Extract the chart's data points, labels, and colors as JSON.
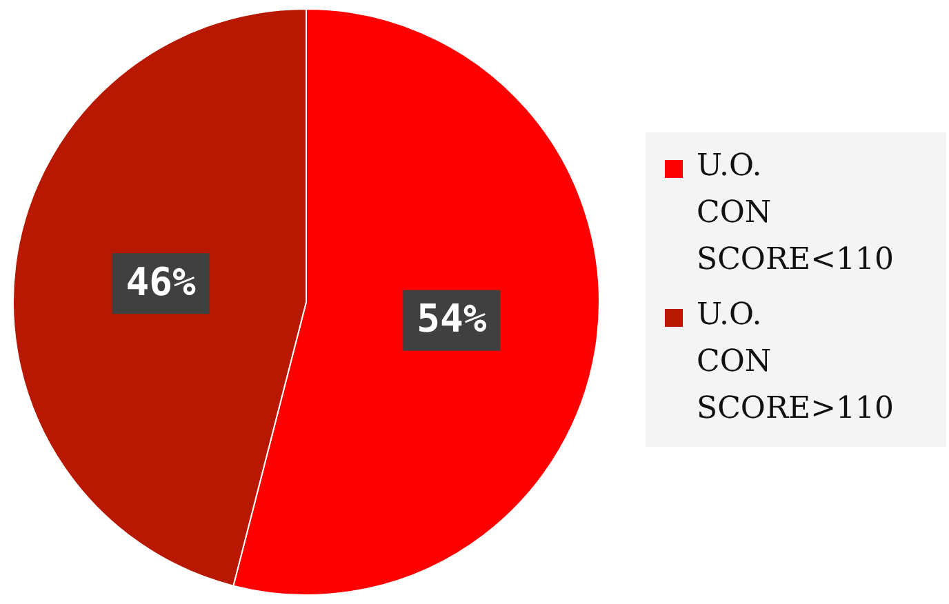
{
  "chart_data": {
    "type": "pie",
    "categories": [
      "U.O. CON SCORE<110",
      "U.O. CON SCORE>110"
    ],
    "values": [
      54,
      46
    ],
    "colors": [
      "#ff0000",
      "#b81800"
    ],
    "value_labels": [
      "54%",
      "46%"
    ],
    "legend": "right"
  }
}
